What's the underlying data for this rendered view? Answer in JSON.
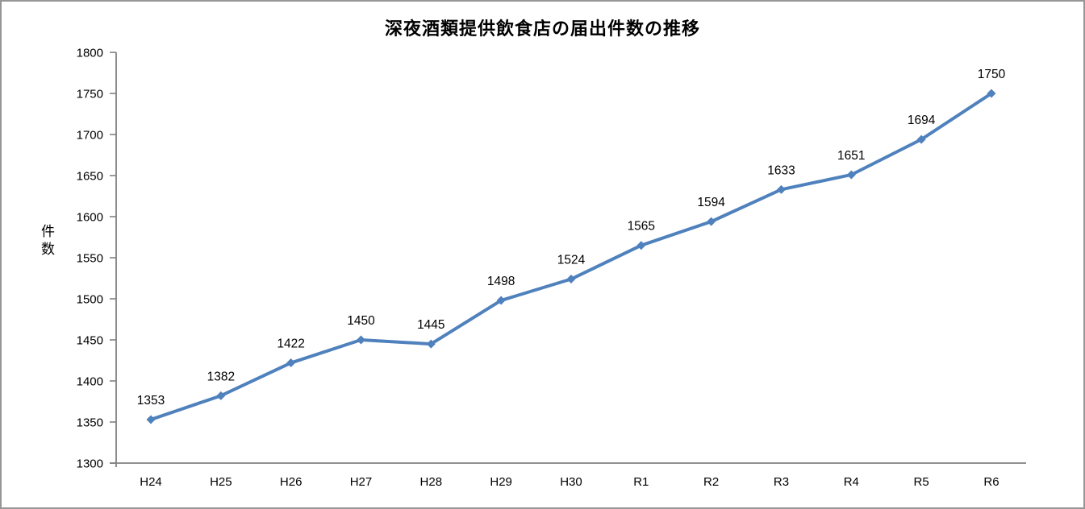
{
  "chart_data": {
    "type": "line",
    "title": "深夜酒類提供飲食店の届出件数の推移",
    "xlabel": "",
    "ylabel": "件数",
    "categories": [
      "H24",
      "H25",
      "H26",
      "H27",
      "H28",
      "H29",
      "H30",
      "R1",
      "R2",
      "R3",
      "R4",
      "R5",
      "R6"
    ],
    "values": [
      1353,
      1382,
      1422,
      1450,
      1445,
      1498,
      1524,
      1565,
      1594,
      1633,
      1651,
      1694,
      1750
    ],
    "ylim": [
      1300,
      1800
    ],
    "ytick_step": 50,
    "data_labels_shown": true,
    "grid": false,
    "legend_position": "none",
    "line_color": "#4F81BD",
    "marker": "diamond",
    "axis_color": "#808080"
  }
}
